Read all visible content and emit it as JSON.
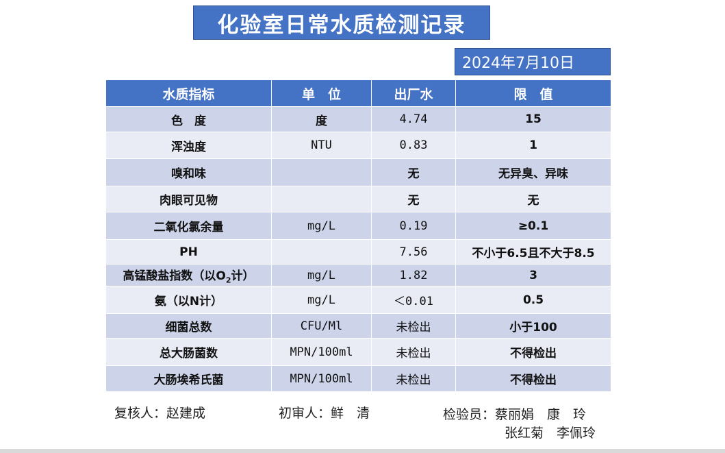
{
  "title": "化验室日常水质检测记录",
  "date": "2024年7月10日",
  "headers": [
    "水质指标",
    "单　位",
    "出厂水",
    "限　值"
  ],
  "rows": [
    {
      "name": "色　度",
      "unit": "度",
      "value": "4.74",
      "limit": "15"
    },
    {
      "name": "浑浊度",
      "unit": "NTU",
      "value": "0.83",
      "limit": "1"
    },
    {
      "name": "嗅和味",
      "unit": "",
      "value": "无",
      "limit": "无异臭、异味"
    },
    {
      "name": "肉眼可见物",
      "unit": "",
      "value": "无",
      "limit": "无"
    },
    {
      "name": "二氧化氯余量",
      "unit": "mg/L",
      "value": "0.19",
      "limit": "≥0.1"
    },
    {
      "name": "PH",
      "unit": "",
      "value": "7.56",
      "limit": "不小于6.5且不大于8.5"
    },
    {
      "name": "高锰酸盐指数（以O",
      "name_sub": "2",
      "name_after": "计）",
      "unit": "mg/L",
      "value": "1.82",
      "limit": "3"
    },
    {
      "name": "氨（以N计）",
      "unit": "mg/L",
      "value": "＜0.01",
      "limit": "0.5"
    },
    {
      "name": "细菌总数",
      "unit": "CFU/Ml",
      "value": "未检出",
      "limit": "小于100"
    },
    {
      "name": "总大肠菌数",
      "unit": "MPN/100ml",
      "value": "未检出",
      "limit": "不得检出"
    },
    {
      "name": "大肠埃希氏菌",
      "unit": "MPN/100ml",
      "value": "未检出",
      "limit": "不得检出"
    }
  ],
  "footer": {
    "reviewer": "复核人：赵建成",
    "first_reviewer": "初审人：鲜　清",
    "inspectors_line1": "检验员：蔡丽娟　康　玲",
    "inspectors_line2": "张红菊　李佩玲"
  }
}
